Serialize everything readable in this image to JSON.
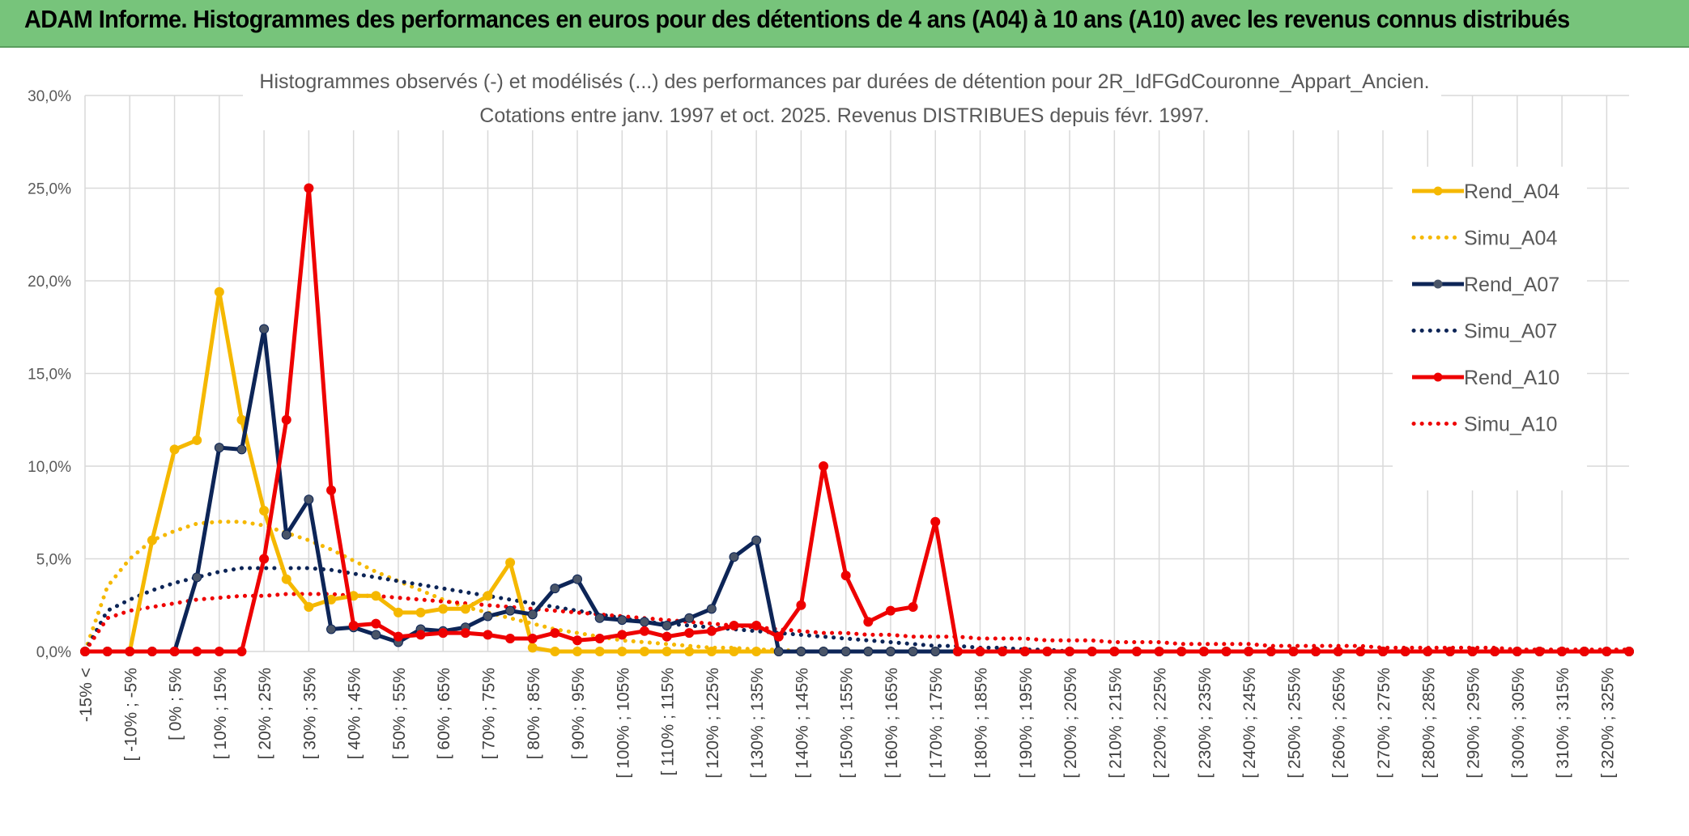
{
  "banner": {
    "title": "ADAM Informe. Histogrammes des performances en euros pour des détentions de 4 ans (A04) à 10 ans (A10) avec les revenus connus distribués"
  },
  "colors": {
    "yellow": "#f5b800",
    "navy": "#0d2557",
    "red": "#ee0000",
    "banner": "#77c47b",
    "grid": "#d9d9d9"
  },
  "chart_data": {
    "type": "line",
    "title": "Histogrammes observés (-) et modélisés (...) des performances par durées de détention pour 2R_IdFGdCouronne_Appart_Ancien.",
    "subtitle": "Cotations entre janv. 1997 et oct. 2025. Revenus DISTRIBUES depuis févr. 1997.",
    "ylim": [
      0,
      30
    ],
    "yticks": [
      0,
      5,
      10,
      15,
      20,
      25,
      30
    ],
    "ytick_labels": [
      "0,0%",
      "5,0%",
      "10,0%",
      "15,0%",
      "20,0%",
      "25,0%",
      "30,0%"
    ],
    "tick_labels": [
      "-15% <",
      "[ -10% ; -5%",
      "[ 0% ; 5%",
      "[ 10% ; 15%",
      "[ 20% ; 25%",
      "[ 30% ; 35%",
      "[ 40% ; 45%",
      "[ 50% ; 55%",
      "[ 60% ; 65%",
      "[ 70% ; 75%",
      "[ 80% ; 85%",
      "[ 90% ; 95%",
      "[ 100% ; 105%",
      "[ 110% ; 115%",
      "[ 120% ; 125%",
      "[ 130% ; 135%",
      "[ 140% ; 145%",
      "[ 150% ; 155%",
      "[ 160% ; 165%",
      "[ 170% ; 175%",
      "[ 180% ; 185%",
      "[ 190% ; 195%",
      "[ 200% ; 205%",
      "[ 210% ; 215%",
      "[ 220% ; 225%",
      "[ 230% ; 235%",
      "[ 240% ; 245%",
      "[ 250% ; 255%",
      "[ 260% ; 265%",
      "[ 270% ; 275%",
      "[ 280% ; 285%",
      "[ 290% ; 295%",
      "[ 300% ; 305%",
      "[ 310% ; 315%",
      "[ 320% ; 325%"
    ],
    "n_categories": 70,
    "legend": [
      "Rend_A04",
      "Simu_A04",
      "Rend_A07",
      "Simu_A07",
      "Rend_A10",
      "Simu_A10"
    ],
    "legend_position": "right",
    "series": [
      {
        "name": "Rend_A04",
        "style": "solid",
        "color": "#f5b800",
        "values": [
          0,
          0,
          0,
          6,
          10.9,
          11.4,
          19.4,
          12.5,
          7.6,
          3.9,
          2.4,
          2.8,
          3.0,
          3.0,
          2.1,
          2.1,
          2.3,
          2.3,
          3.0,
          4.8,
          0.2,
          0,
          0,
          0,
          0,
          0,
          0,
          0,
          0,
          0,
          0,
          0,
          0,
          0,
          0,
          0,
          0,
          0,
          0,
          0,
          0,
          0,
          0,
          0,
          0,
          0,
          0,
          0,
          0,
          0,
          0,
          0,
          0,
          0,
          0,
          0,
          0,
          0,
          0,
          0,
          0,
          0,
          0,
          0,
          0,
          0,
          0,
          0,
          0,
          0
        ]
      },
      {
        "name": "Simu_A04",
        "style": "dotted",
        "color": "#f5b800",
        "values": [
          0,
          3.5,
          5.0,
          6.0,
          6.5,
          6.9,
          7.0,
          7.0,
          6.8,
          6.4,
          6.0,
          5.5,
          4.9,
          4.3,
          3.8,
          3.3,
          2.8,
          2.4,
          2.1,
          1.8,
          1.5,
          1.2,
          1.0,
          0.8,
          0.6,
          0.5,
          0.4,
          0.3,
          0.2,
          0.2,
          0.1,
          0.1,
          0,
          0,
          0,
          0,
          0,
          0,
          0,
          0,
          0,
          0,
          0,
          0,
          0,
          0,
          0,
          0,
          0,
          0,
          0,
          0,
          0,
          0,
          0,
          0,
          0,
          0,
          0,
          0,
          0,
          0,
          0,
          0,
          0,
          0,
          0,
          0,
          0,
          0
        ]
      },
      {
        "name": "Rend_A07",
        "style": "solid",
        "color": "#0d2557",
        "values": [
          0,
          0,
          0,
          0,
          0,
          4.0,
          11.0,
          10.9,
          17.4,
          6.3,
          8.2,
          1.2,
          1.3,
          0.9,
          0.5,
          1.2,
          1.1,
          1.3,
          1.9,
          2.2,
          2.0,
          3.4,
          3.9,
          1.8,
          1.7,
          1.6,
          1.4,
          1.8,
          2.3,
          5.1,
          6.0,
          0,
          0,
          0,
          0,
          0,
          0,
          0,
          0,
          0,
          0,
          0,
          0,
          0,
          0,
          0,
          0,
          0,
          0,
          0,
          0,
          0,
          0,
          0,
          0,
          0,
          0,
          0,
          0,
          0,
          0,
          0,
          0,
          0,
          0,
          0,
          0,
          0,
          0,
          0
        ]
      },
      {
        "name": "Simu_A07",
        "style": "dotted",
        "color": "#0d2557",
        "values": [
          0,
          2.2,
          2.8,
          3.3,
          3.7,
          4.0,
          4.3,
          4.5,
          4.5,
          4.5,
          4.5,
          4.4,
          4.2,
          4.0,
          3.8,
          3.6,
          3.4,
          3.2,
          3.0,
          2.8,
          2.6,
          2.4,
          2.2,
          2.0,
          1.8,
          1.6,
          1.5,
          1.4,
          1.3,
          1.2,
          1.1,
          1.0,
          0.9,
          0.8,
          0.7,
          0.6,
          0.5,
          0.4,
          0.3,
          0.3,
          0.2,
          0.2,
          0.1,
          0.1,
          0,
          0,
          0,
          0,
          0,
          0,
          0,
          0,
          0,
          0,
          0,
          0,
          0,
          0,
          0,
          0,
          0,
          0,
          0,
          0,
          0,
          0,
          0,
          0,
          0,
          0
        ]
      },
      {
        "name": "Rend_A10",
        "style": "solid",
        "color": "#ee0000",
        "values": [
          0,
          0,
          0,
          0,
          0,
          0,
          0,
          0,
          5.0,
          12.5,
          25.0,
          8.7,
          1.4,
          1.5,
          0.8,
          0.9,
          1.0,
          1.0,
          0.9,
          0.7,
          0.7,
          1.0,
          0.6,
          0.7,
          0.9,
          1.1,
          0.8,
          1.0,
          1.1,
          1.4,
          1.4,
          0.8,
          2.5,
          10.0,
          4.1,
          1.6,
          2.2,
          2.4,
          7.0,
          0,
          0,
          0,
          0,
          0,
          0,
          0,
          0,
          0,
          0,
          0,
          0,
          0,
          0,
          0,
          0,
          0,
          0,
          0,
          0,
          0,
          0,
          0,
          0,
          0,
          0,
          0,
          0,
          0,
          0,
          0
        ]
      },
      {
        "name": "Simu_A10",
        "style": "dotted",
        "color": "#ee0000",
        "values": [
          0,
          1.8,
          2.2,
          2.4,
          2.6,
          2.8,
          2.9,
          3.0,
          3.0,
          3.1,
          3.1,
          3.1,
          3.0,
          3.0,
          2.9,
          2.8,
          2.7,
          2.6,
          2.5,
          2.4,
          2.3,
          2.2,
          2.1,
          2.0,
          1.9,
          1.8,
          1.7,
          1.6,
          1.5,
          1.4,
          1.3,
          1.2,
          1.1,
          1.0,
          1.0,
          0.9,
          0.9,
          0.8,
          0.8,
          0.8,
          0.7,
          0.7,
          0.7,
          0.6,
          0.6,
          0.6,
          0.5,
          0.5,
          0.5,
          0.4,
          0.4,
          0.4,
          0.4,
          0.3,
          0.3,
          0.3,
          0.3,
          0.3,
          0.2,
          0.2,
          0.2,
          0.2,
          0.2,
          0.2,
          0.1,
          0.1,
          0.1,
          0.1,
          0.1,
          0.1
        ]
      }
    ]
  }
}
